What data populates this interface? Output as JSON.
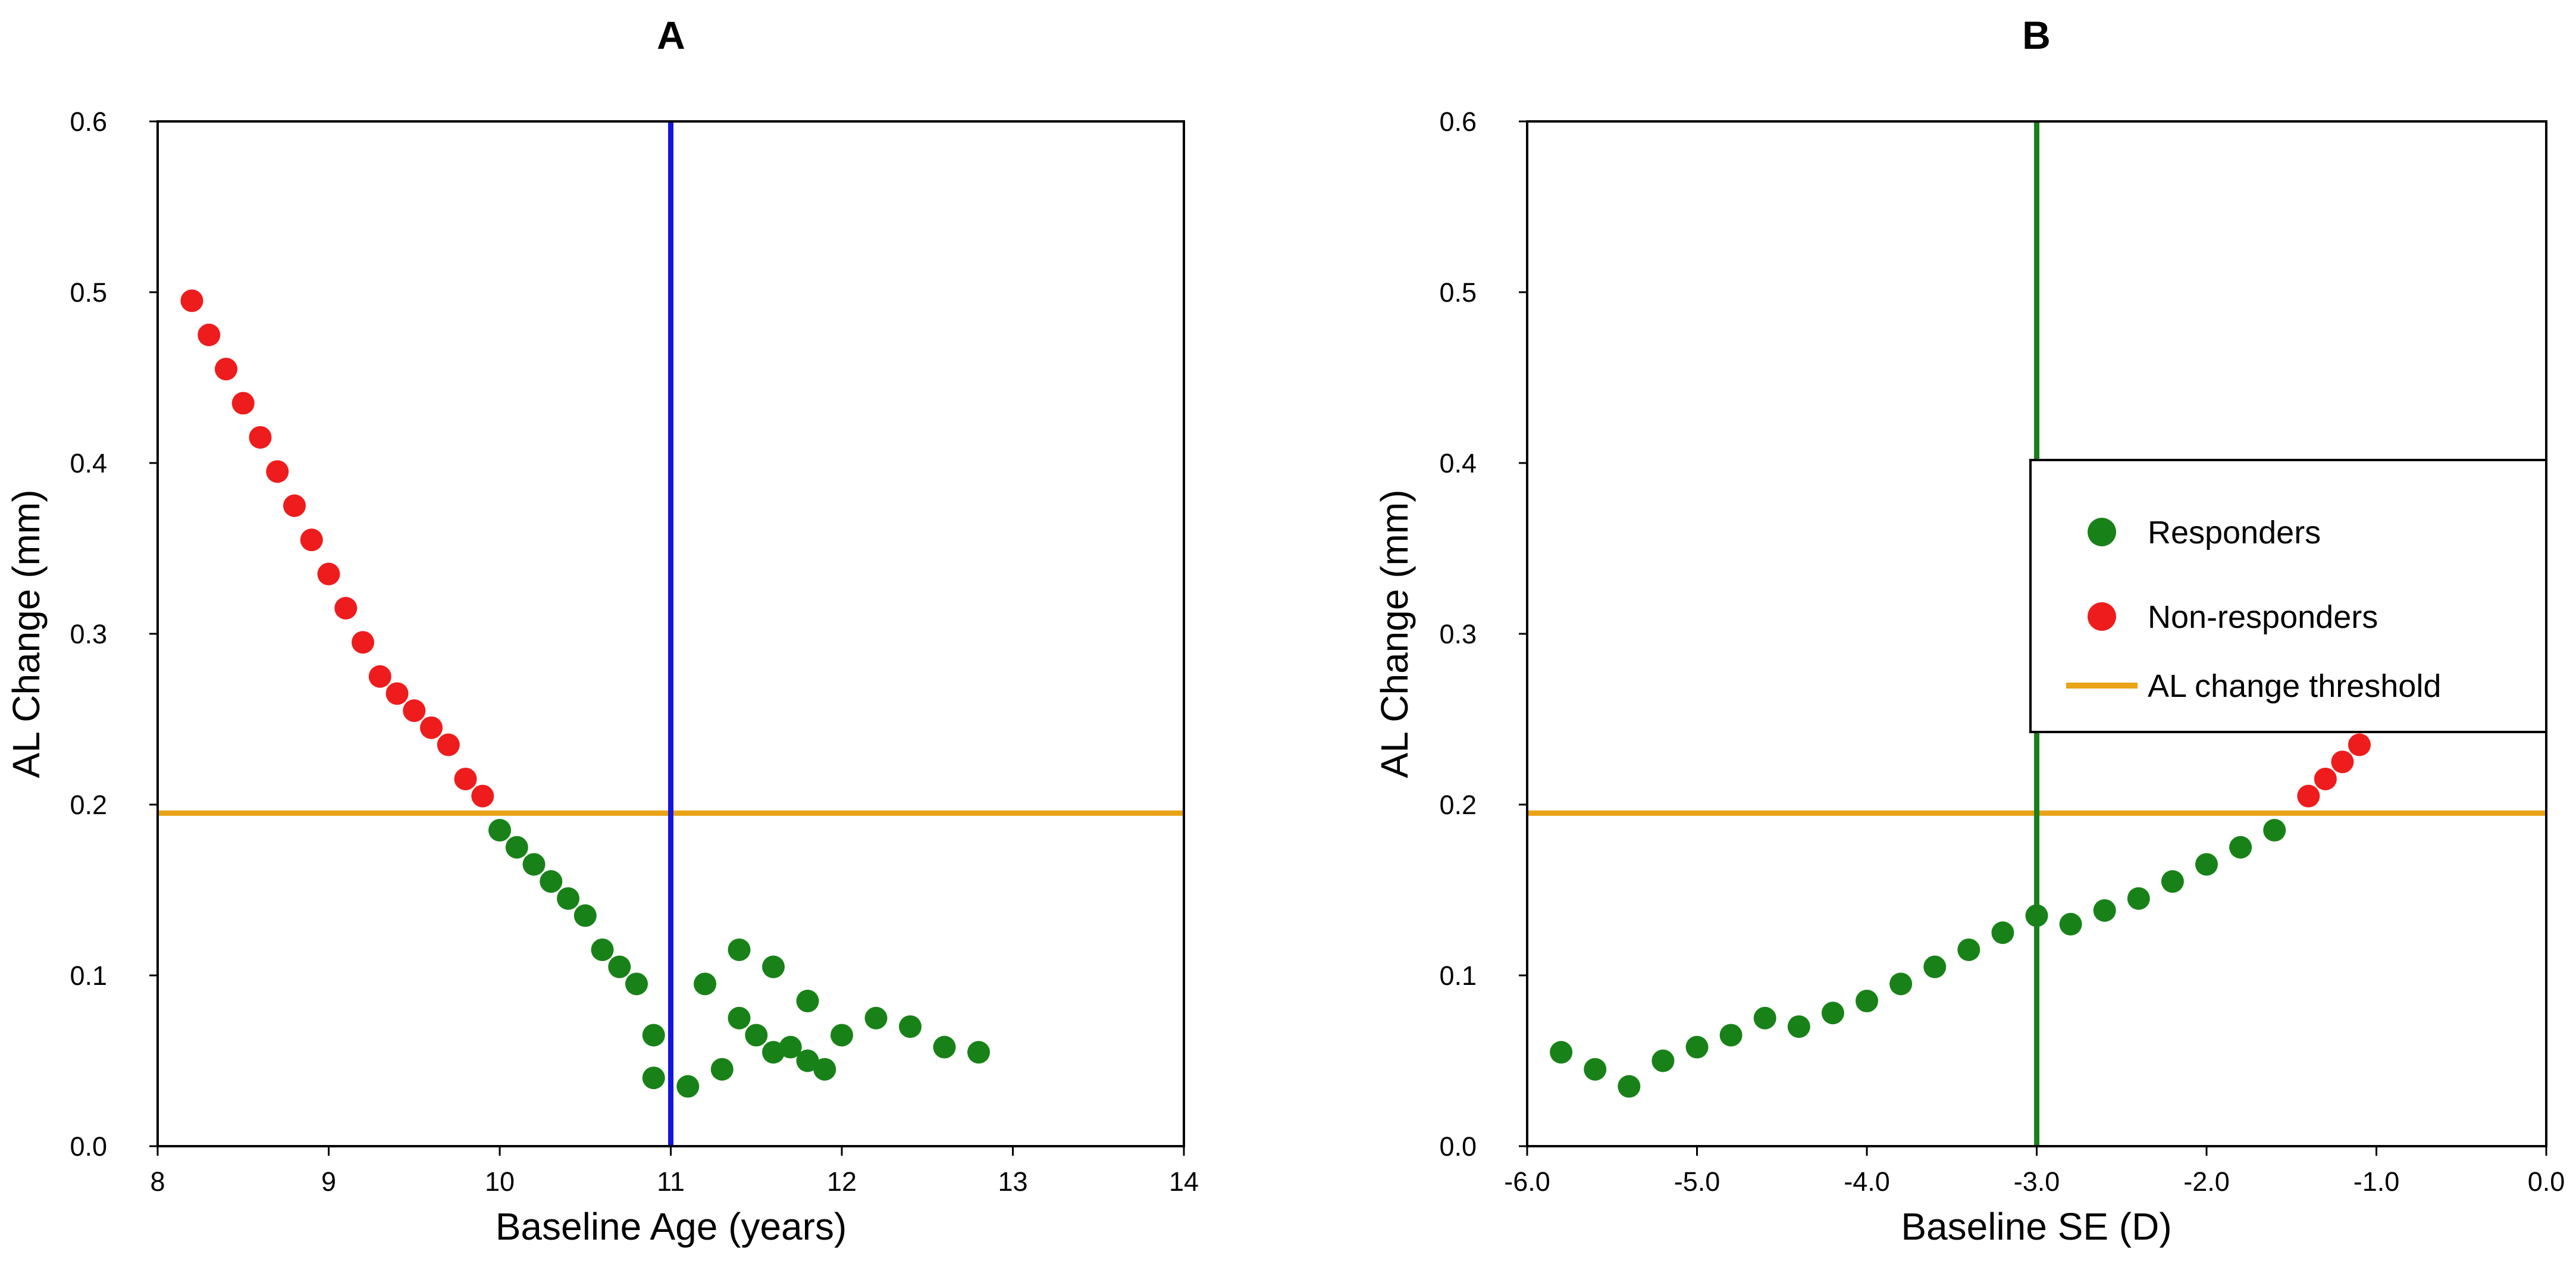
{
  "chart_data": [
    {
      "type": "scatter",
      "title": "A",
      "xlabel": "Baseline Age (years)",
      "ylabel": "AL Change (mm)",
      "xlim": [
        8,
        14
      ],
      "ylim": [
        0,
        0.6
      ],
      "x_ticks": [
        "8",
        "9",
        "10",
        "11",
        "12",
        "13",
        "14"
      ],
      "y_ticks": [
        "0.0",
        "0.1",
        "0.2",
        "0.3",
        "0.4",
        "0.5",
        "0.6"
      ],
      "grid": false,
      "threshold": {
        "name": "AL change threshold",
        "y": 0.195,
        "color": "#E8A317"
      },
      "vline": {
        "x": 11.0,
        "color": "#1515E0"
      },
      "series": [
        {
          "name": "Non-responders",
          "color": "#EE1C1C",
          "points": [
            [
              8.2,
              0.495
            ],
            [
              8.3,
              0.475
            ],
            [
              8.4,
              0.455
            ],
            [
              8.5,
              0.435
            ],
            [
              8.6,
              0.415
            ],
            [
              8.7,
              0.395
            ],
            [
              8.8,
              0.375
            ],
            [
              8.9,
              0.355
            ],
            [
              9.0,
              0.335
            ],
            [
              9.1,
              0.315
            ],
            [
              9.2,
              0.295
            ],
            [
              9.3,
              0.275
            ],
            [
              9.4,
              0.265
            ],
            [
              9.5,
              0.255
            ],
            [
              9.6,
              0.245
            ],
            [
              9.7,
              0.235
            ],
            [
              9.8,
              0.215
            ],
            [
              9.9,
              0.205
            ]
          ]
        },
        {
          "name": "Responders",
          "color": "#188218",
          "points": [
            [
              10.0,
              0.185
            ],
            [
              10.1,
              0.175
            ],
            [
              10.2,
              0.165
            ],
            [
              10.3,
              0.155
            ],
            [
              10.4,
              0.145
            ],
            [
              10.5,
              0.135
            ],
            [
              10.6,
              0.115
            ],
            [
              10.7,
              0.105
            ],
            [
              10.8,
              0.095
            ],
            [
              10.9,
              0.065
            ],
            [
              10.9,
              0.04
            ],
            [
              11.1,
              0.035
            ],
            [
              11.2,
              0.095
            ],
            [
              11.3,
              0.045
            ],
            [
              11.4,
              0.115
            ],
            [
              11.4,
              0.075
            ],
            [
              11.5,
              0.065
            ],
            [
              11.6,
              0.105
            ],
            [
              11.6,
              0.055
            ],
            [
              11.7,
              0.058
            ],
            [
              11.8,
              0.085
            ],
            [
              11.8,
              0.05
            ],
            [
              11.9,
              0.045
            ],
            [
              12.0,
              0.065
            ],
            [
              12.2,
              0.075
            ],
            [
              12.4,
              0.07
            ],
            [
              12.6,
              0.058
            ],
            [
              12.8,
              0.055
            ]
          ]
        }
      ]
    },
    {
      "type": "scatter",
      "title": "B",
      "xlabel": "Baseline SE (D)",
      "ylabel": "AL Change (mm)",
      "xlim": [
        -6.0,
        0.0
      ],
      "ylim": [
        0,
        0.6
      ],
      "x_ticks": [
        "-6.0",
        "-5.0",
        "-4.0",
        "-3.0",
        "-2.0",
        "-1.0",
        "0.0"
      ],
      "y_ticks": [
        "0.0",
        "0.1",
        "0.2",
        "0.3",
        "0.4",
        "0.5",
        "0.6"
      ],
      "grid": false,
      "threshold": {
        "name": "AL change threshold",
        "y": 0.195,
        "color": "#E8A317"
      },
      "vline": {
        "x": -3.0,
        "color": "#188218"
      },
      "legend": {
        "placement": "center-right",
        "entries": [
          {
            "label": "Responders",
            "kind": "marker",
            "color": "#188218"
          },
          {
            "label": "Non-responders",
            "kind": "marker",
            "color": "#EE1C1C"
          },
          {
            "label": "AL change threshold",
            "kind": "line",
            "color": "#E8A317"
          }
        ]
      },
      "series": [
        {
          "name": "Responders",
          "color": "#188218",
          "points": [
            [
              -5.8,
              0.055
            ],
            [
              -5.6,
              0.045
            ],
            [
              -5.4,
              0.035
            ],
            [
              -5.2,
              0.05
            ],
            [
              -5.0,
              0.058
            ],
            [
              -4.8,
              0.065
            ],
            [
              -4.6,
              0.075
            ],
            [
              -4.4,
              0.07
            ],
            [
              -4.2,
              0.078
            ],
            [
              -4.0,
              0.085
            ],
            [
              -3.8,
              0.095
            ],
            [
              -3.6,
              0.105
            ],
            [
              -3.4,
              0.115
            ],
            [
              -3.2,
              0.125
            ],
            [
              -3.0,
              0.135
            ],
            [
              -2.8,
              0.13
            ],
            [
              -2.6,
              0.138
            ],
            [
              -2.4,
              0.145
            ],
            [
              -2.2,
              0.155
            ],
            [
              -2.0,
              0.165
            ],
            [
              -1.8,
              0.175
            ],
            [
              -1.6,
              0.185
            ]
          ]
        },
        {
          "name": "Non-responders",
          "color": "#EE1C1C",
          "points": [
            [
              -1.4,
              0.205
            ],
            [
              -1.3,
              0.215
            ],
            [
              -1.2,
              0.225
            ],
            [
              -1.1,
              0.235
            ]
          ]
        }
      ]
    }
  ]
}
